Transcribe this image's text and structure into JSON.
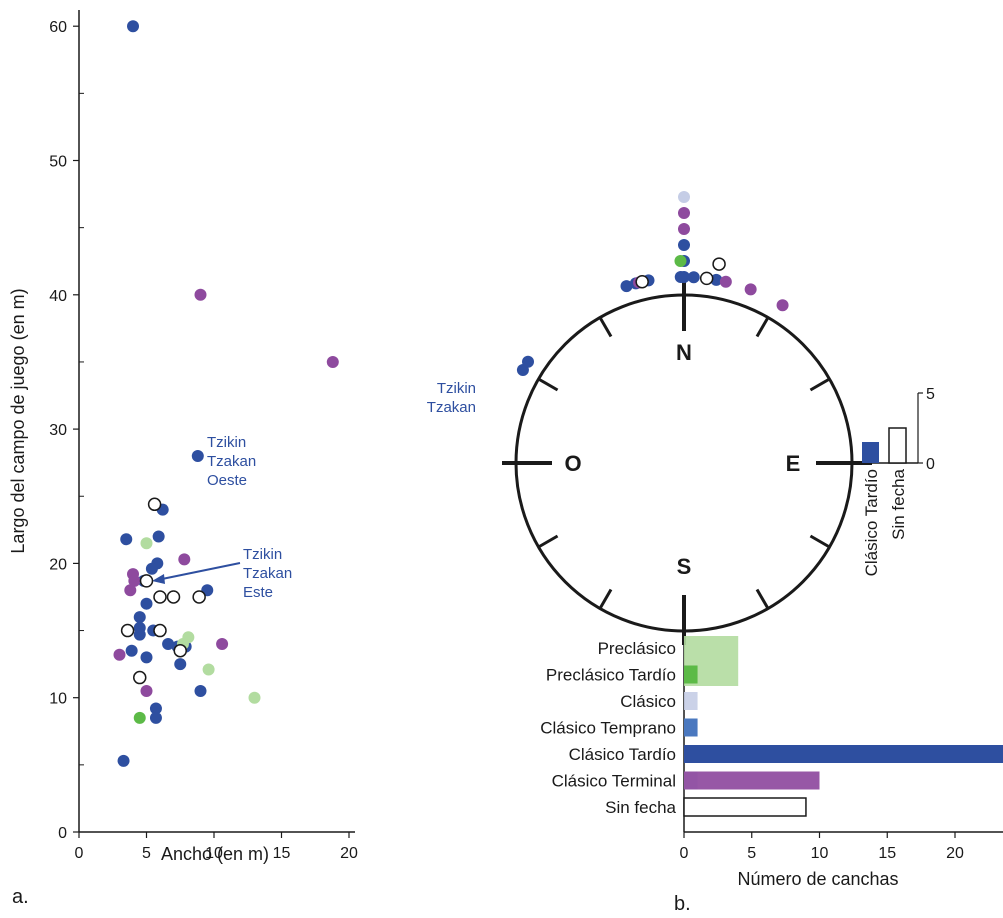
{
  "colors": {
    "preclasico": "#b2dca0",
    "preclasico_tardio": "#5cba47",
    "clasico": "#c5cde6",
    "clasico_temprano": "#4a78bf",
    "clasico_tardio": "#2e4fa0",
    "clasico_terminal": "#8e4a9e",
    "sin_fecha": "#ffffff",
    "annotation": "#2e4fa0"
  },
  "chart_data": [
    {
      "type": "scatter",
      "panel_label": "a.",
      "xlabel": "Ancho (en m)",
      "ylabel": "Largo del campo de juego (en m)",
      "xlim": [
        0,
        20
      ],
      "ylim": [
        0,
        60
      ],
      "xticks": [
        0,
        5,
        10,
        15,
        20
      ],
      "yticks": [
        0,
        10,
        20,
        30,
        40,
        50,
        60
      ],
      "grid": false,
      "annotations": [
        {
          "lines": [
            "Tzikin",
            "Tzakan",
            "Oeste"
          ]
        },
        {
          "lines": [
            "Tzikin",
            "Tzakan",
            "Este"
          ]
        }
      ],
      "series": [
        {
          "key": "clasico_tardio",
          "points": [
            [
              4,
              60
            ],
            [
              8.8,
              28
            ],
            [
              6.2,
              24
            ],
            [
              3.5,
              21.8
            ],
            [
              5.9,
              22
            ],
            [
              5.8,
              20
            ],
            [
              5.4,
              19.6
            ],
            [
              4.8,
              18.7
            ],
            [
              9.5,
              18
            ],
            [
              5,
              17
            ],
            [
              4.5,
              16
            ],
            [
              4.5,
              15.2
            ],
            [
              5.5,
              15
            ],
            [
              4.5,
              14.7
            ],
            [
              3.9,
              13.5
            ],
            [
              6.6,
              14
            ],
            [
              7.3,
              13.8
            ],
            [
              7.9,
              13.8
            ],
            [
              5,
              13
            ],
            [
              7.5,
              12.5
            ],
            [
              9,
              10.5
            ],
            [
              5.7,
              9.2
            ],
            [
              5.7,
              8.5
            ],
            [
              3.3,
              5.3
            ]
          ]
        },
        {
          "key": "clasico_terminal",
          "points": [
            [
              9,
              40
            ],
            [
              18.8,
              35
            ],
            [
              4,
              19.2
            ],
            [
              4.1,
              18.7
            ],
            [
              3.8,
              18
            ],
            [
              7.8,
              20.3
            ],
            [
              3,
              13.2
            ],
            [
              10.6,
              14
            ],
            [
              5,
              10.5
            ]
          ]
        },
        {
          "key": "preclasico",
          "points": [
            [
              5,
              21.5
            ],
            [
              7.7,
              14
            ],
            [
              8.1,
              14.5
            ],
            [
              9.6,
              12.1
            ],
            [
              13,
              10
            ]
          ]
        },
        {
          "key": "preclasico_tardio",
          "points": [
            [
              4.5,
              8.5
            ]
          ]
        },
        {
          "key": "sin_fecha",
          "points": [
            [
              5.6,
              24.4
            ],
            [
              5,
              18.7
            ],
            [
              6,
              17.5
            ],
            [
              7,
              17.5
            ],
            [
              8.9,
              17.5
            ],
            [
              3.6,
              15
            ],
            [
              6,
              15
            ],
            [
              7.5,
              13.5
            ],
            [
              4.5,
              11.5
            ]
          ]
        }
      ]
    },
    {
      "type": "scatter",
      "subtype": "orientation-compass",
      "panel_label": "b.",
      "compass_labels": {
        "n": "N",
        "e": "E",
        "s": "S",
        "w": "O"
      },
      "annotations": [
        {
          "lines": [
            "Tzikin",
            "Tzakan"
          ]
        }
      ],
      "series": [
        {
          "key": "clasico_tardio",
          "azimuth_deg": [
            -18,
            -15,
            -11,
            0,
            -1,
            0,
            0,
            3,
            10,
            -60,
            -57
          ]
        },
        {
          "key": "clasico_terminal",
          "azimuth_deg": [
            -14,
            0,
            0,
            13,
            21,
            32
          ]
        },
        {
          "key": "preclasico_tardio",
          "azimuth_deg": [
            -1
          ]
        },
        {
          "key": "clasico",
          "azimuth_deg": [
            0
          ]
        },
        {
          "key": "sin_fecha",
          "azimuth_deg": [
            -13,
            7,
            10
          ]
        }
      ]
    },
    {
      "type": "bar",
      "orientation": "vertical",
      "categories": [
        "Clásico Tardío",
        "Sin fecha"
      ],
      "values": [
        1.5,
        2.5
      ],
      "yticks": [
        0,
        5
      ],
      "ylim": [
        0,
        5
      ]
    },
    {
      "type": "bar",
      "orientation": "horizontal",
      "xlabel": "Número de canchas",
      "xticks": [
        0,
        5,
        10,
        15,
        20
      ],
      "xlim": [
        0,
        23.5
      ],
      "categories": [
        "Preclásico",
        "Preclásico Tardío",
        "Clásico",
        "Clásico Temprano",
        "Clásico Tardío",
        "Clásico Terminal",
        "Sin fecha"
      ],
      "series": [
        {
          "values": [
            4,
            4,
            1,
            1,
            1,
            1,
            1
          ],
          "keys": [
            "preclasico",
            "preclasico",
            "clasico",
            "clasico",
            "clasico",
            "clasico",
            "clasico"
          ]
        },
        {
          "values": [
            0,
            1,
            0,
            1,
            24,
            10,
            9
          ],
          "keys": [
            "preclasico_tardio",
            "preclasico_tardio",
            "clasico",
            "clasico_temprano",
            "clasico_tardio",
            "clasico_terminal",
            "sin_fecha"
          ]
        }
      ]
    }
  ]
}
